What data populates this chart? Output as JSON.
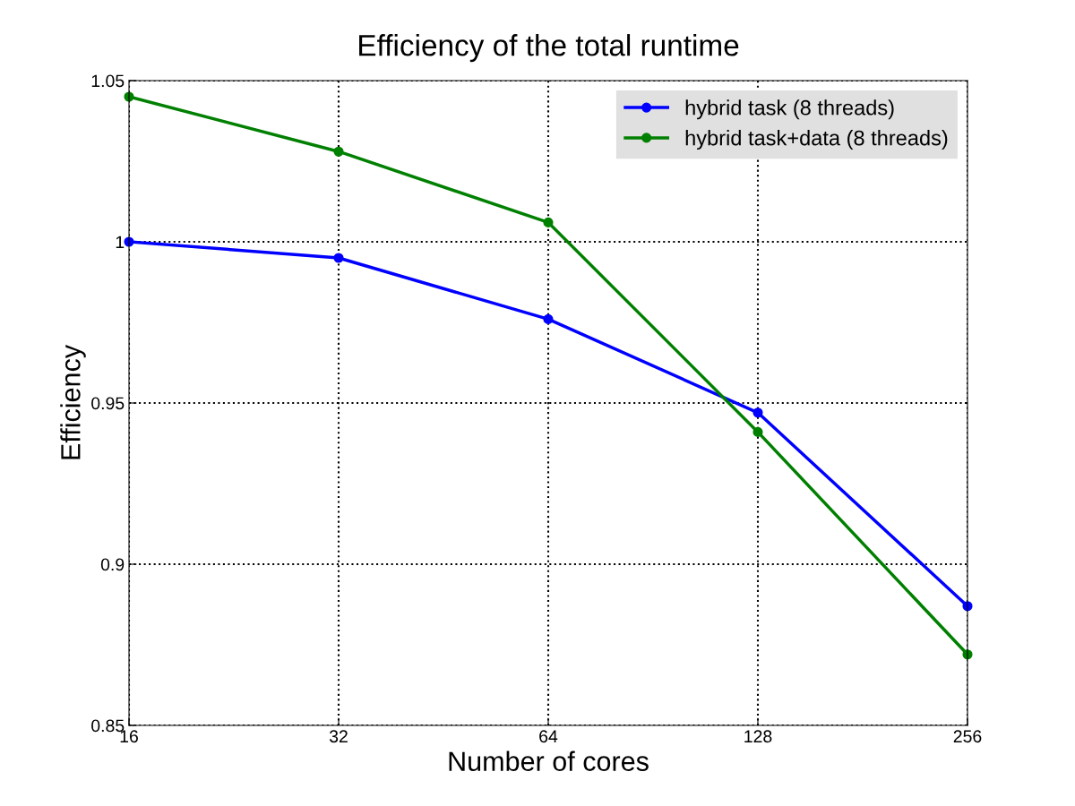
{
  "chart_data": {
    "type": "line",
    "title": "Efficiency of the total runtime",
    "xlabel": "Number of cores",
    "ylabel": "Efficiency",
    "x": [
      16,
      32,
      64,
      128,
      256
    ],
    "series": [
      {
        "name": "hybrid task (8 threads)",
        "color": "#0000ff",
        "values": [
          1.0,
          0.995,
          0.976,
          0.947,
          0.887
        ]
      },
      {
        "name": "hybrid task+data (8 threads)",
        "color": "#008000",
        "values": [
          1.045,
          1.028,
          1.006,
          0.941,
          0.872
        ]
      }
    ],
    "log": "x",
    "xlim": [
      16,
      256
    ],
    "xticks": [
      16,
      32,
      64,
      128,
      256
    ],
    "ylim": [
      0.85,
      1.05
    ],
    "yticks": [
      0.85,
      0.9,
      0.95,
      1,
      1.05
    ],
    "grid": true,
    "legend": "top right",
    "marker": "circle",
    "line_style": "solid"
  }
}
